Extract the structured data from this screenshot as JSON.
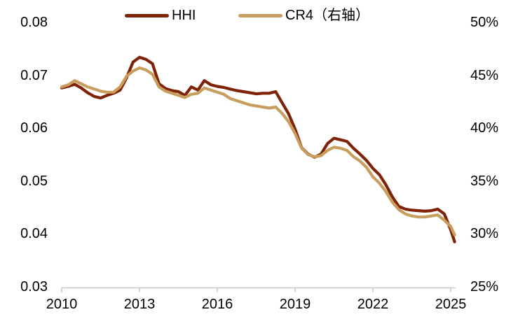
{
  "chart_data": {
    "type": "line",
    "title": "",
    "legend_position": "top",
    "grid": false,
    "colors": {
      "hhi_line": "#7E2308",
      "cr4_line": "#C89E5E",
      "axis_line": "#C9C9C9",
      "text": "#000000",
      "background": "#FFFFFF"
    },
    "x_ticks": [
      "2010",
      "2013",
      "2016",
      "2019",
      "2022",
      "2025"
    ],
    "x_range": [
      2010,
      2025.3
    ],
    "left_axis": {
      "min": 0.03,
      "max": 0.08,
      "ticks": [
        "0.08",
        "0.07",
        "0.06",
        "0.05",
        "0.04",
        "0.03"
      ]
    },
    "right_axis": {
      "min": 25,
      "max": 50,
      "ticks": [
        "50%",
        "45%",
        "40%",
        "35%",
        "30%",
        "25%"
      ]
    },
    "series": [
      {
        "name": "HHI",
        "axis": "left",
        "color": "#7E2308",
        "x": [
          2010.0,
          2010.25,
          2010.5,
          2010.75,
          2011.0,
          2011.25,
          2011.5,
          2011.75,
          2012.0,
          2012.25,
          2012.5,
          2012.75,
          2013.0,
          2013.25,
          2013.5,
          2013.75,
          2014.0,
          2014.25,
          2014.5,
          2014.75,
          2015.0,
          2015.25,
          2015.5,
          2015.75,
          2016.0,
          2016.25,
          2016.5,
          2016.75,
          2017.0,
          2017.25,
          2017.5,
          2017.75,
          2018.0,
          2018.25,
          2018.5,
          2018.75,
          2019.0,
          2019.25,
          2019.5,
          2019.75,
          2020.0,
          2020.25,
          2020.5,
          2020.75,
          2021.0,
          2021.25,
          2021.5,
          2021.75,
          2022.0,
          2022.25,
          2022.5,
          2022.75,
          2023.0,
          2023.25,
          2023.5,
          2023.75,
          2024.0,
          2024.25,
          2024.5,
          2024.75,
          2025.0,
          2025.15
        ],
        "values": [
          0.0676,
          0.0679,
          0.0683,
          0.0676,
          0.0667,
          0.066,
          0.0657,
          0.0662,
          0.0666,
          0.0672,
          0.0695,
          0.0725,
          0.0734,
          0.073,
          0.0722,
          0.0684,
          0.0675,
          0.0671,
          0.0669,
          0.0662,
          0.0678,
          0.0672,
          0.069,
          0.0682,
          0.0679,
          0.0677,
          0.0674,
          0.0671,
          0.0669,
          0.0667,
          0.0665,
          0.0666,
          0.0666,
          0.0669,
          0.0648,
          0.0627,
          0.0598,
          0.0563,
          0.0551,
          0.0545,
          0.0551,
          0.0571,
          0.0581,
          0.0578,
          0.0575,
          0.0562,
          0.0551,
          0.0539,
          0.0524,
          0.0512,
          0.0493,
          0.047,
          0.0452,
          0.0447,
          0.0445,
          0.0444,
          0.0443,
          0.0444,
          0.0447,
          0.0438,
          0.0408,
          0.0385
        ]
      },
      {
        "name": "CR4（右轴）",
        "axis": "right",
        "color": "#C89E5E",
        "x": [
          2010.0,
          2010.25,
          2010.5,
          2010.75,
          2011.0,
          2011.25,
          2011.5,
          2011.75,
          2012.0,
          2012.25,
          2012.5,
          2012.75,
          2013.0,
          2013.25,
          2013.5,
          2013.75,
          2014.0,
          2014.25,
          2014.5,
          2014.75,
          2015.0,
          2015.25,
          2015.5,
          2015.75,
          2016.0,
          2016.25,
          2016.5,
          2016.75,
          2017.0,
          2017.25,
          2017.5,
          2017.75,
          2018.0,
          2018.25,
          2018.5,
          2018.75,
          2019.0,
          2019.25,
          2019.5,
          2019.75,
          2020.0,
          2020.25,
          2020.5,
          2020.75,
          2021.0,
          2021.25,
          2021.5,
          2021.75,
          2022.0,
          2022.25,
          2022.5,
          2022.75,
          2023.0,
          2023.25,
          2023.5,
          2023.75,
          2024.0,
          2024.25,
          2024.5,
          2024.75,
          2025.0,
          2025.15
        ],
        "values": [
          43.9,
          44.1,
          44.5,
          44.2,
          43.9,
          43.7,
          43.5,
          43.4,
          43.4,
          43.9,
          44.9,
          45.4,
          45.7,
          45.5,
          45.1,
          43.9,
          43.5,
          43.3,
          43.1,
          42.9,
          43.2,
          43.3,
          43.8,
          43.6,
          43.4,
          43.2,
          42.8,
          42.6,
          42.4,
          42.2,
          42.1,
          42.0,
          41.9,
          42.0,
          41.4,
          40.6,
          39.5,
          38.1,
          37.5,
          37.3,
          37.4,
          37.9,
          38.2,
          38.1,
          37.9,
          37.3,
          36.9,
          36.3,
          35.4,
          34.8,
          34.0,
          33.0,
          32.3,
          31.9,
          31.7,
          31.6,
          31.6,
          31.7,
          31.8,
          31.3,
          30.7,
          29.9
        ]
      }
    ]
  }
}
